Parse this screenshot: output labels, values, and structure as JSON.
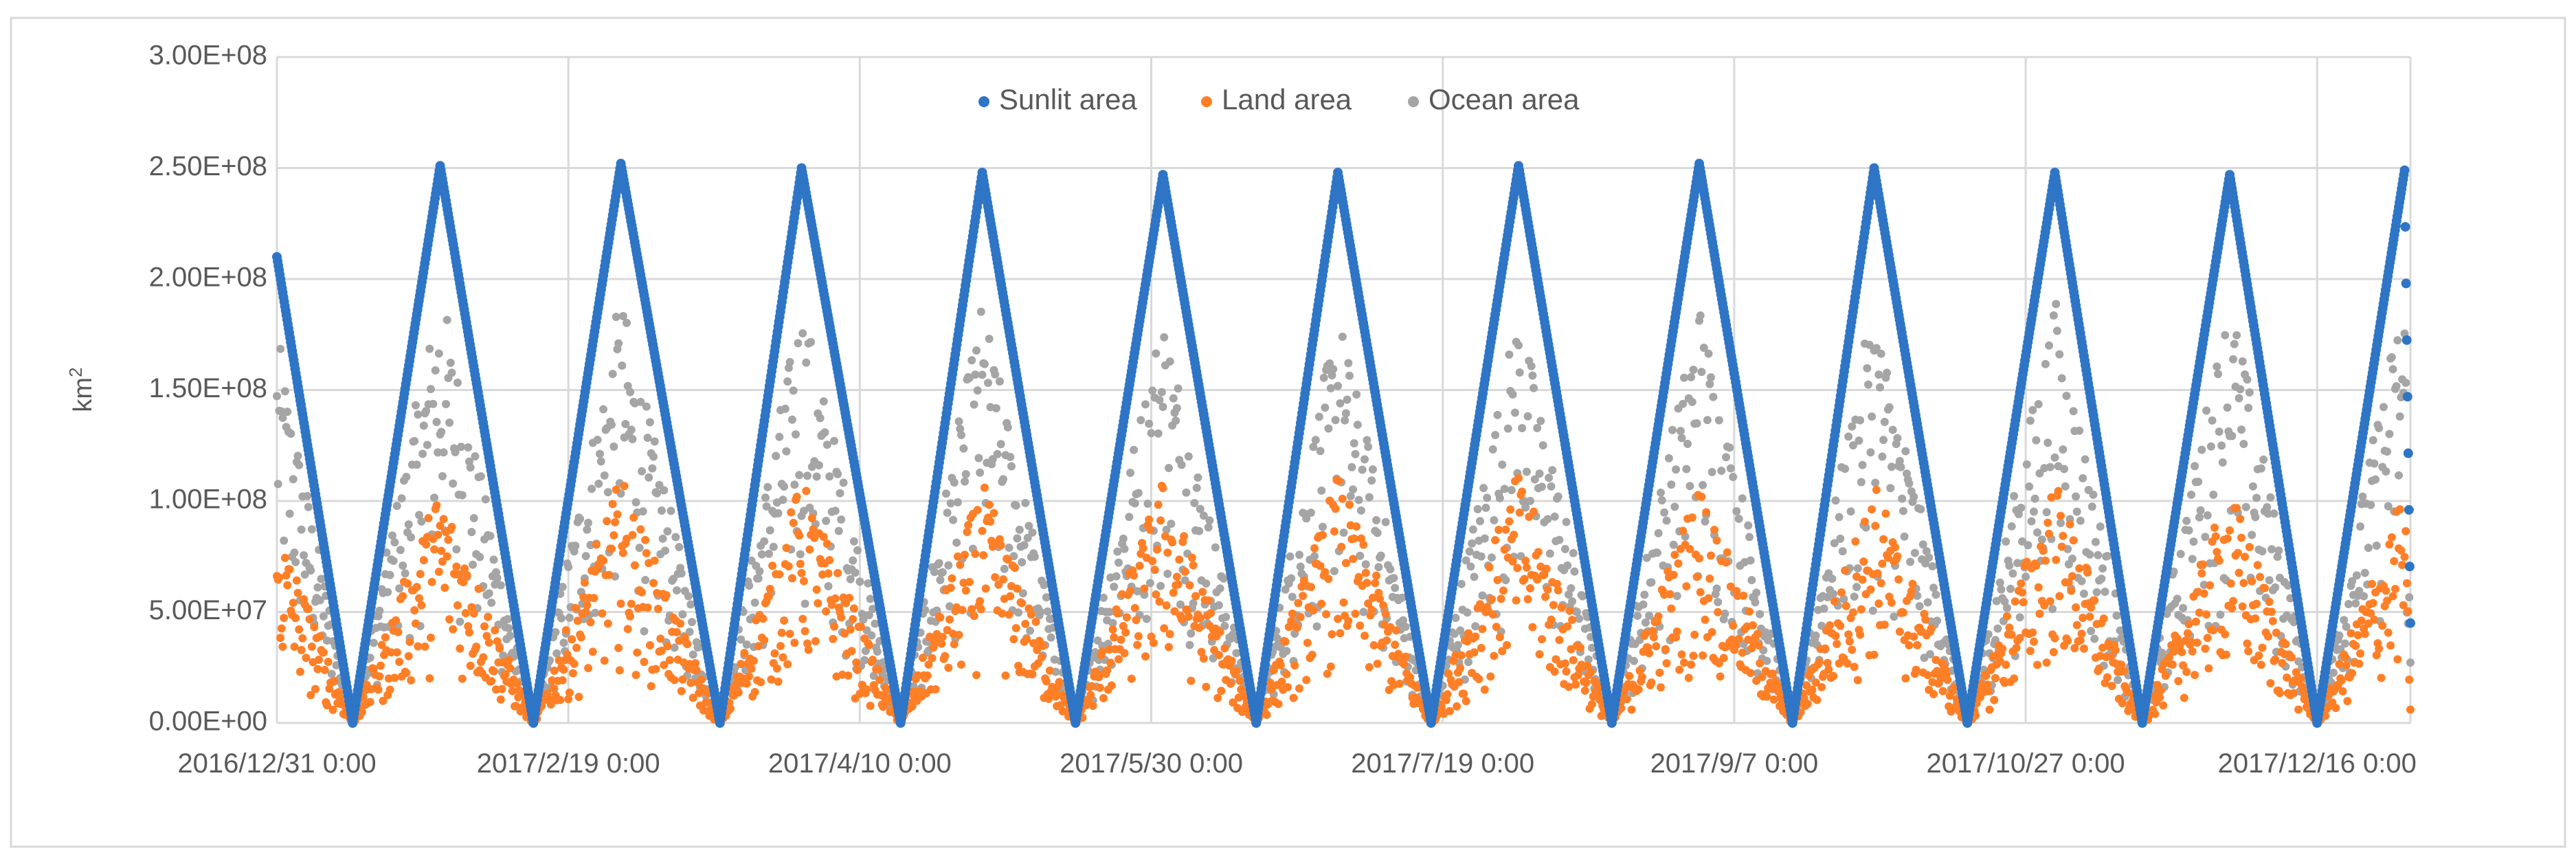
{
  "chart_data": {
    "type": "scatter",
    "title": "",
    "xlabel": "",
    "ylabel": "km",
    "ylabel_superscript": "2",
    "ylim": [
      0,
      300000000
    ],
    "y_ticks": [
      "0.00E+00",
      "5.00E+07",
      "1.00E+08",
      "1.50E+08",
      "2.00E+08",
      "2.50E+08",
      "3.00E+08"
    ],
    "y_tick_values": [
      0,
      50000000,
      100000000,
      150000000,
      200000000,
      250000000,
      300000000
    ],
    "x_ticks": [
      "2016/12/31 0:00",
      "2017/2/19 0:00",
      "2017/4/10 0:00",
      "2017/5/30 0:00",
      "2017/7/19 0:00",
      "2017/9/7 0:00",
      "2017/10/27 0:00",
      "2017/12/16 0:00"
    ],
    "x_tick_dates": [
      "2016-12-31",
      "2017-02-19",
      "2017-04-10",
      "2017-05-30",
      "2017-07-19",
      "2017-09-07",
      "2017-10-27",
      "2017-12-16"
    ],
    "xlim": [
      "2016-12-31",
      "2018-01-01"
    ],
    "grid": true,
    "legend_position": "top-center",
    "cycle_minima_dates": [
      "2017-01-13",
      "2017-02-13",
      "2017-03-17",
      "2017-04-17",
      "2017-05-17",
      "2017-06-17",
      "2017-07-17",
      "2017-08-17",
      "2017-09-17",
      "2017-10-17",
      "2017-11-16",
      "2017-12-16"
    ],
    "cycle_peaks": [
      {
        "date": "2017-01-28",
        "sunlit": 251000000,
        "land": 109000000,
        "ocean": 199000000
      },
      {
        "date": "2017-02-28",
        "sunlit": 252000000,
        "land": 112000000,
        "ocean": 194000000
      },
      {
        "date": "2017-03-31",
        "sunlit": 250000000,
        "land": 111000000,
        "ocean": 193000000
      },
      {
        "date": "2017-05-01",
        "sunlit": 248000000,
        "land": 109000000,
        "ocean": 191000000
      },
      {
        "date": "2017-06-01",
        "sunlit": 247000000,
        "land": 111000000,
        "ocean": 190000000
      },
      {
        "date": "2017-07-01",
        "sunlit": 248000000,
        "land": 113000000,
        "ocean": 188000000
      },
      {
        "date": "2017-08-01",
        "sunlit": 251000000,
        "land": 114000000,
        "ocean": 189000000
      },
      {
        "date": "2017-09-01",
        "sunlit": 252000000,
        "land": 110000000,
        "ocean": 193000000
      },
      {
        "date": "2017-10-01",
        "sunlit": 250000000,
        "land": 110000000,
        "ocean": 193000000
      },
      {
        "date": "2017-11-01",
        "sunlit": 248000000,
        "land": 111000000,
        "ocean": 193000000
      },
      {
        "date": "2017-12-01",
        "sunlit": 247000000,
        "land": 107000000,
        "ocean": 196000000
      },
      {
        "date": "2017-12-31",
        "sunlit": 249000000,
        "land": 106000000,
        "ocean": 201000000
      }
    ],
    "start_values": {
      "date": "2016-12-31",
      "sunlit": 210000000,
      "land": 92000000,
      "ocean": 177000000
    },
    "end_values": {
      "date": "2018-01-01",
      "sunlit": 45000000,
      "land": 15000000,
      "ocean": 30000000
    },
    "series": [
      {
        "name": "Sunlit area",
        "color": "#2E75C6"
      },
      {
        "name": "Land area",
        "color": "#FF7F27"
      },
      {
        "name": "Ocean area",
        "color": "#A5A5A5"
      }
    ]
  },
  "frame": {
    "border_color": "#D9D9D9",
    "grid_color": "#D9D9D9"
  }
}
